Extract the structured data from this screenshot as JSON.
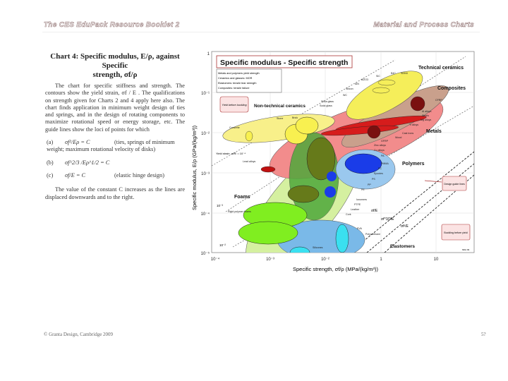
{
  "header": {
    "left": "The CES EduPack Resource Booklet 2",
    "right": "Material and Process Charts"
  },
  "text": {
    "chart_title_line1": "Chart 4:  Specific modulus, E/ρ, against Specific",
    "chart_title_line2": "strength, σf/ρ",
    "para1": "The chart for specific stiffness and strength. The contours show the yield strain, σf / E . The qualifications on strength given for Charts 2 and 4 apply here also. The chart finds application in minimum weight design of ties and springs, and in the design of rotating components to maximize rotational speed or energy storage, etc. The guide lines show the loci of points for which",
    "eq_a_label": "(a)",
    "eq_a": "σf²/Eρ = C",
    "eq_a_note": "(ties, springs of minimum weight; maximum rotational velocity of disks)",
    "eq_b_label": "(b)",
    "eq_b": "σf^2/3 /Eρ^1/2 = C",
    "eq_c_label": "(c)",
    "eq_c": "σf/E = C",
    "eq_c_note": "(elastic hinge design)",
    "para2": "The value of the constant C increases as the lines are displaced downwards and to the right."
  },
  "footer": {
    "left": "© Granta Design, Cambridge 2009",
    "right": "5?"
  },
  "chart": {
    "title": "Specific modulus - Specific strength",
    "legend_notes": [
      "Metals and polymers yield strength",
      "Ceramics and glasses: MOR",
      "Elastomers: tensile tear strength",
      "Composites: tensile failure"
    ],
    "xlabel": "Specific strength, σf/ρ (MPa/(kg/m³))",
    "ylabel": "Specific modulus, E/ρ (GPa/(kg/m³))",
    "xticks": [
      "10⁻⁴",
      "10⁻³",
      "10⁻²",
      "1",
      "10"
    ],
    "yticks": [
      "1",
      "10⁻¹",
      "10⁻²",
      "10⁻³",
      "10⁻⁴",
      "10⁻⁵"
    ],
    "families": {
      "technical_ceramics": "Technical ceramics",
      "composites": "Composites",
      "non_technical_ceramics": "Non-technical ceramics",
      "metals": "Metals",
      "polymers": "Polymers",
      "foams": "Foams",
      "elastomers": "Elastomers"
    },
    "materials": [
      "B4C",
      "Si3N4",
      "SiC",
      "Al2O3",
      "AlN",
      "Silicon",
      "WC",
      "Silica glass",
      "Soda glass",
      "CFRP",
      "Al alloys",
      "Steels",
      "Mg alloys",
      "Ti alloys",
      "Cast irons",
      "Wood",
      "GFRP",
      "Zinc alloys",
      "Cu alloys",
      "Lead alloys",
      "Stone",
      "Brick",
      "Concrete",
      "PA",
      "PMMA",
      "PC",
      "Epoxies",
      "PS",
      "PP",
      "PE",
      "Ionomers",
      "PTFE",
      "Leather",
      "Cork",
      "EVA",
      "Polyurethane",
      "Silicones",
      "Rigid polymer foams"
    ],
    "boxes": {
      "yield_before_buckling": "Yield before buckling",
      "buckling_before_yield": "Buckling before yield",
      "design_guide_lines": "Design guide lines"
    },
    "yield_strain_label": "Yield strain, σf/E = 10⁻⁴",
    "strain_labels": [
      "10⁻³",
      "10⁻²"
    ],
    "guide_labels": [
      "σf/E",
      "σf^3/2/E",
      "σf²/E"
    ],
    "credit": "MFA 09",
    "colors": {
      "technical_ceramics": "#f5ee6a",
      "composites": "#c9a08c",
      "metals": "#e83a3a",
      "polymers": "#2a4fe0",
      "foams": "#b7e88a",
      "elastomers": "#6fb6e8",
      "natural": "#5d8a2a"
    }
  }
}
